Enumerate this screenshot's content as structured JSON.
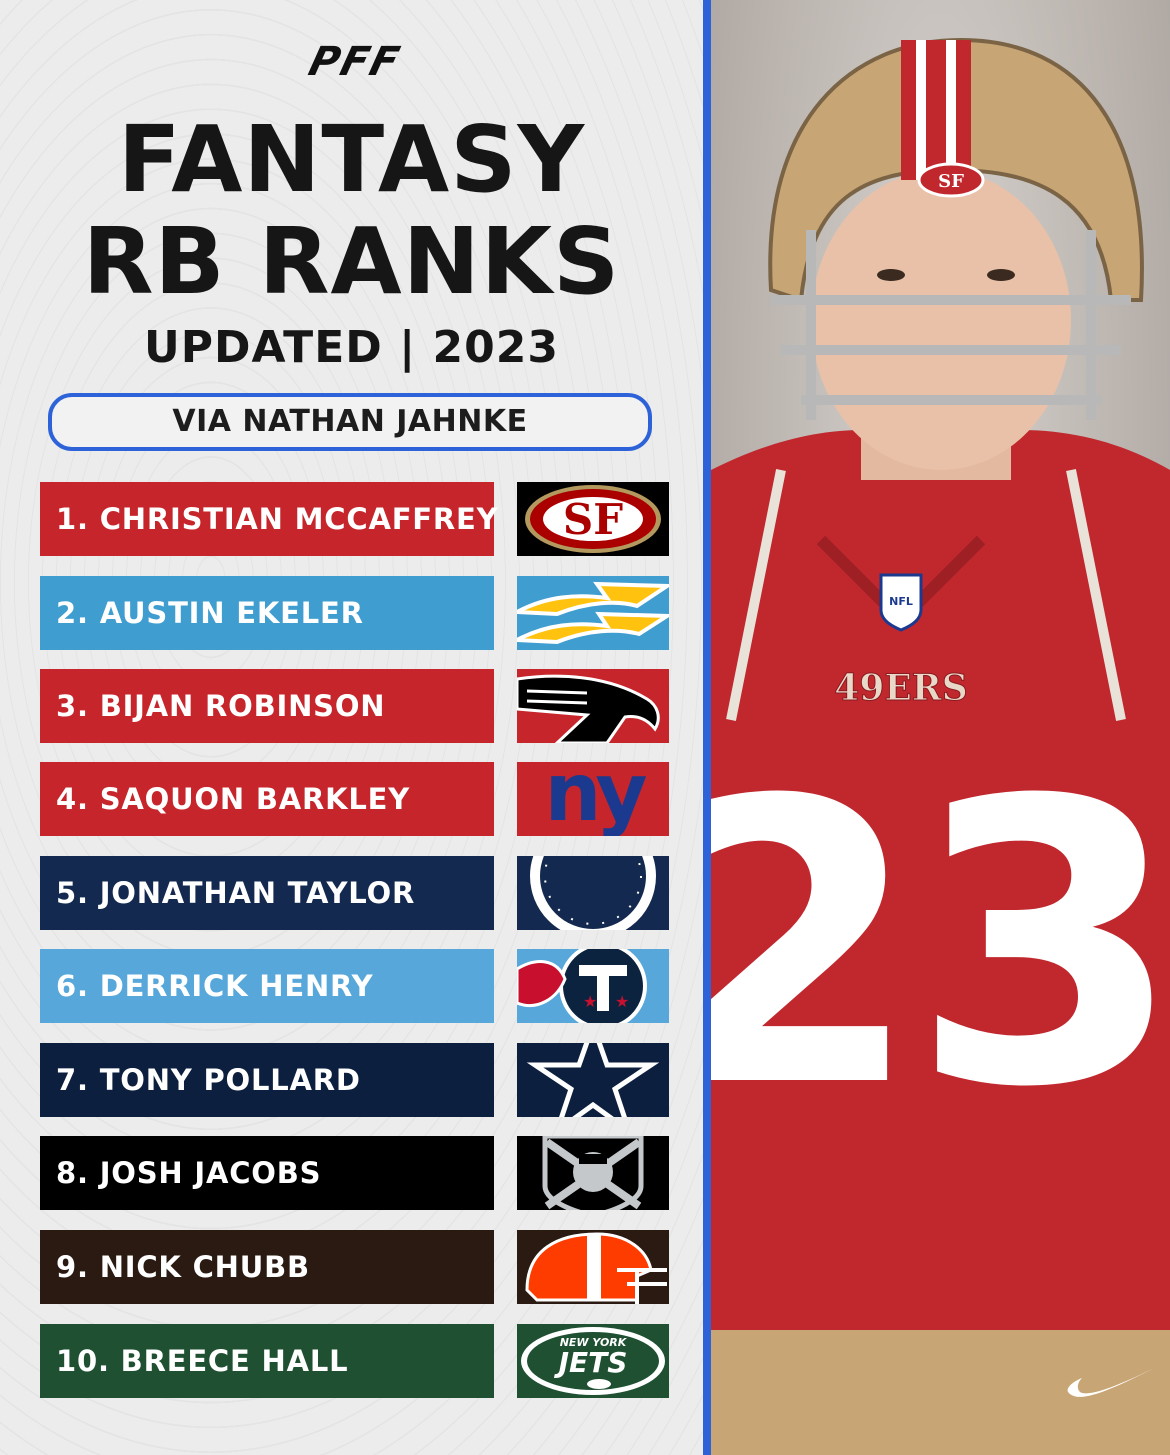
{
  "brand": "PFF",
  "title_line1": "FANTASY",
  "title_line2": "RB RANKS",
  "subtitle": "UPDATED | 2023",
  "credit": "VIA NATHAN JAHNKE",
  "player_photo": {
    "helmet_logo": "SF",
    "jersey_wordmark": "49ERS",
    "jersey_number": "23",
    "shield_text": "NFL"
  },
  "rankings": [
    {
      "label": "1. CHRISTIAN MCCAFFREY",
      "team_icon": "49ers-logo",
      "color": "#c5252b"
    },
    {
      "label": "2. AUSTIN EKELER",
      "team_icon": "chargers-logo",
      "color": "#3f9dcf"
    },
    {
      "label": "3. BIJAN ROBINSON",
      "team_icon": "falcons-logo",
      "color": "#c5252b"
    },
    {
      "label": "4. SAQUON BARKLEY",
      "team_icon": "giants-logo",
      "color": "#c5252b"
    },
    {
      "label": "5. JONATHAN TAYLOR",
      "team_icon": "colts-logo",
      "color": "#14294f"
    },
    {
      "label": "6. DERRICK HENRY",
      "team_icon": "titans-logo",
      "color": "#57a7da"
    },
    {
      "label": "7. TONY POLLARD",
      "team_icon": "cowboys-logo",
      "color": "#0d1f3e"
    },
    {
      "label": "8. JOSH JACOBS",
      "team_icon": "raiders-logo",
      "color": "#000000"
    },
    {
      "label": "9. NICK CHUBB",
      "team_icon": "browns-logo",
      "color": "#2a1a12"
    },
    {
      "label": "10. BREECE HALL",
      "team_icon": "jets-logo",
      "color": "#1f5032"
    }
  ],
  "jets_wordmark_top": "NEW YORK",
  "jets_wordmark": "JETS",
  "colors": {
    "accent_blue": "#2d62d8",
    "niners_red": "#c5252b",
    "niners_gold": "#b3995d"
  }
}
